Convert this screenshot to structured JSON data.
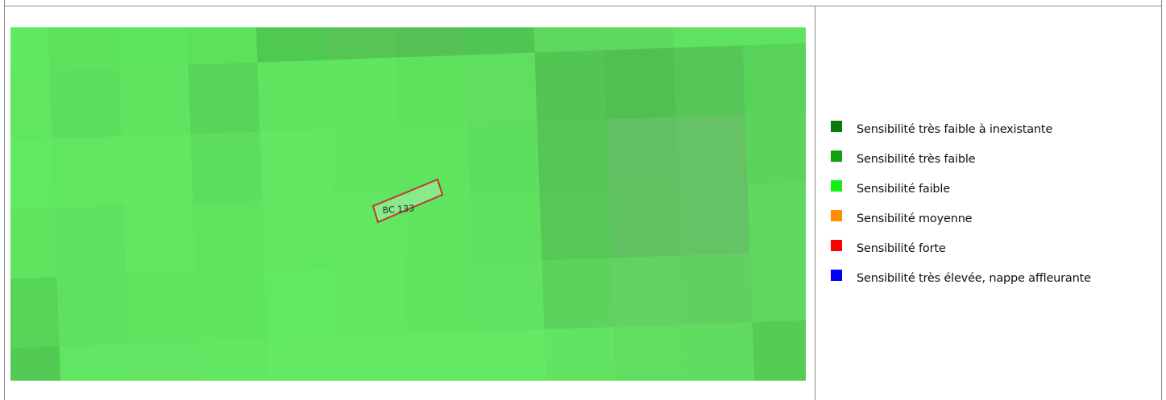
{
  "map": {
    "parcel_label": "BC 133",
    "parcel_outline_color": "#c0392b",
    "cell_colors": [
      [
        "#61e861",
        "#5ce25c",
        "#5ee55e",
        "#5be15b",
        "#4fc94f",
        "#56c556",
        "#54c254",
        "#51c551",
        "#5cd85c",
        "#5dda5d",
        "#5fe35f",
        "#5fe25f"
      ],
      [
        "#60e660",
        "#5ddf5d",
        "#5fe45f",
        "#58d558",
        "#5fe45f",
        "#60e560",
        "#5ee25e",
        "#60de60",
        "#52c552",
        "#50c150",
        "#56c656",
        "#58d258"
      ],
      [
        "#62e962",
        "#60e660",
        "#62e762",
        "#5ddd5d",
        "#61e761",
        "#60e560",
        "#5fe45f",
        "#5ede5e",
        "#55c555",
        "#63c163",
        "#65c265",
        "#5cd45c"
      ],
      [
        "#5fe45f",
        "#5ee15e",
        "#60e660",
        "#5ee35e",
        "#60e660",
        "#61e761",
        "#5fe55f",
        "#5fe15f",
        "#56c856",
        "#60c160",
        "#64c364",
        "#5ed85e"
      ],
      [
        "#56d456",
        "#5fe15f",
        "#5fe45f",
        "#60e560",
        "#62e962",
        "#61e761",
        "#60e560",
        "#61e261",
        "#5cd35c",
        "#62d262",
        "#60d060",
        "#5dd75d"
      ],
      [
        "#52c952",
        "#62e562",
        "#63e563",
        "#63e763",
        "#63e963",
        "#62e862",
        "#62e862",
        "#63e963",
        "#62e362",
        "#5fde5f",
        "#60dc60",
        "#55cd55"
      ]
    ]
  },
  "legend": {
    "items": [
      {
        "label": "Sensibilité très faible à inexistante",
        "color": "#0a7a0a"
      },
      {
        "label": "Sensibilité très faible",
        "color": "#10a010"
      },
      {
        "label": "Sensibilité faible",
        "color": "#12f012"
      },
      {
        "label": "Sensibilité moyenne",
        "color": "#ff8c00"
      },
      {
        "label": "Sensibilité forte",
        "color": "#ff0000"
      },
      {
        "label": "Sensibilité très élevée, nappe affleurante",
        "color": "#0000ff"
      }
    ]
  }
}
